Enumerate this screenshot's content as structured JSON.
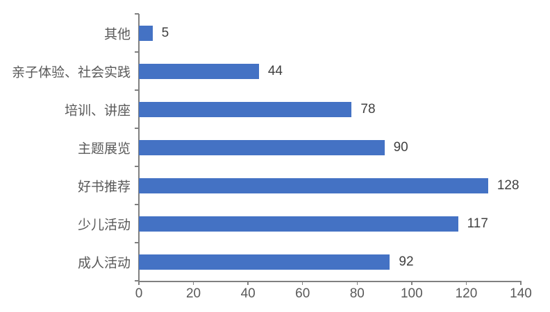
{
  "chart_data": {
    "type": "bar",
    "orientation": "horizontal",
    "title": "",
    "xlabel": "",
    "ylabel": "",
    "categories": [
      "其他",
      "亲子体验、社会实践",
      "培训、讲座",
      "主题展览",
      "好书推荐",
      "少儿活动",
      "成人活动"
    ],
    "values": [
      5,
      44,
      78,
      90,
      128,
      117,
      92
    ],
    "data_labels": [
      "5",
      "44",
      "78",
      "90",
      "128",
      "117",
      "92"
    ],
    "category_order": "top_to_bottom",
    "xlim": [
      0,
      140
    ],
    "xticks": [
      0,
      20,
      40,
      60,
      80,
      100,
      120,
      140
    ],
    "grid": false,
    "legend": false,
    "bar_color": "#4472C4"
  },
  "colors": {
    "bar": "#4472C4",
    "axis_line": "#808080",
    "tick_label": "#595959",
    "category_label": "#595959",
    "data_label": "#404040",
    "background": "#FFFFFF"
  }
}
